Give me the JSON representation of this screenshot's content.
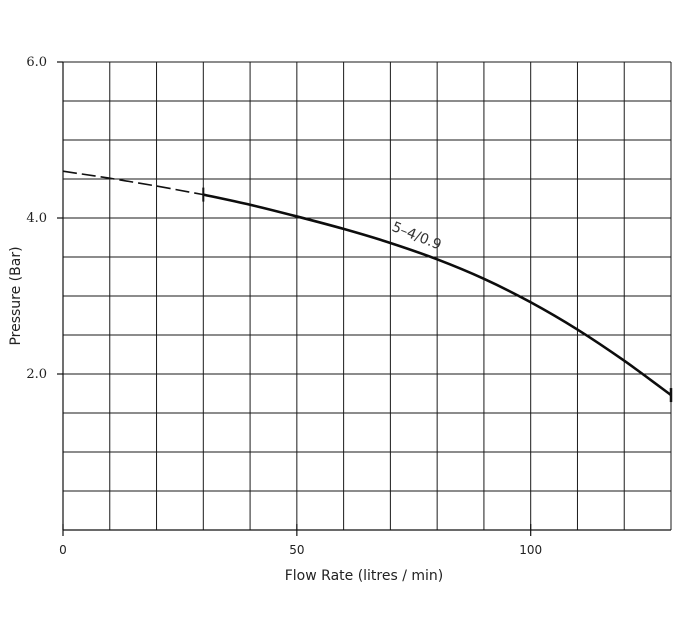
{
  "chart_data": {
    "type": "line",
    "xlabel": "Flow Rate (litres / min)",
    "ylabel": "Pressure (Bar)",
    "xlim": [
      0,
      130
    ],
    "ylim": [
      0,
      6
    ],
    "x_ticks": [
      0,
      50,
      100
    ],
    "y_ticks": [
      2,
      4,
      6
    ],
    "x_tick_labels": [
      "0",
      "50",
      "100"
    ],
    "y_tick_labels": [
      "2.0",
      "4.0",
      "6.0"
    ],
    "x_grid_step": 10,
    "y_grid_step": 0.5,
    "grid": true,
    "series": [
      {
        "name": "5-4/0.9",
        "label_text": "5–4/0.9",
        "extrapolated": {
          "x": [
            0,
            10,
            20,
            30
          ],
          "y": [
            4.6,
            4.51,
            4.41,
            4.3
          ]
        },
        "measured": {
          "x": [
            30,
            40,
            50,
            60,
            70,
            80,
            90,
            100,
            110,
            120,
            130
          ],
          "y": [
            4.3,
            4.17,
            4.02,
            3.86,
            3.68,
            3.47,
            3.22,
            2.92,
            2.57,
            2.17,
            1.73
          ]
        }
      }
    ]
  }
}
